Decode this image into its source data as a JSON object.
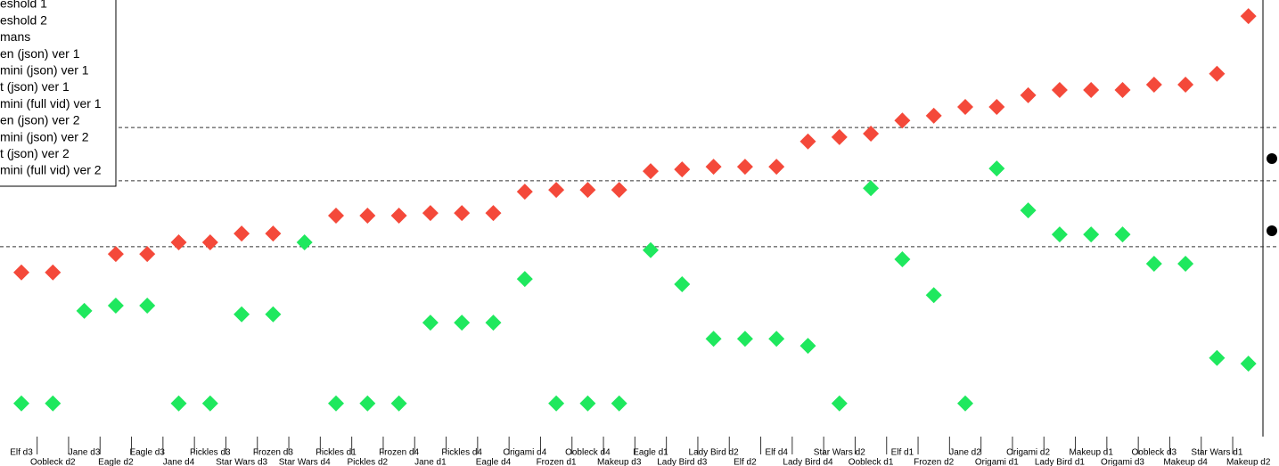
{
  "chart_data": {
    "type": "scatter",
    "categories": [
      "Elf d3",
      "Oobleck d2",
      "Jane d3",
      "Eagle d2",
      "Eagle d3",
      "Jane d4",
      "Pickles d3",
      "Star Wars d3",
      "Frozen d3",
      "Star Wars d4",
      "Pickles d1",
      "Pickles d2",
      "Frozen d4",
      "Jane d1",
      "Pickles d4",
      "Eagle d4",
      "Origami d4",
      "Frozen d1",
      "Oobleck d4",
      "Makeup d3",
      "Eagle d1",
      "Lady Bird d3",
      "Lady Bird d2",
      "Elf d2",
      "Elf d4",
      "Lady Bird d4",
      "Star Wars d2",
      "Oobleck d1",
      "Elf d1",
      "Frozen d2",
      "Jane d2",
      "Origami d1",
      "Origami d2",
      "Lady Bird d1",
      "Makeup d1",
      "Origami d3",
      "Oobleck d3",
      "Makeup d4",
      "Star Wars d1",
      "Makeup d2"
    ],
    "series": [
      {
        "color": "#f4493a",
        "values": [
          37.6,
          37.6,
          null,
          41.8,
          41.8,
          44.5,
          44.5,
          46.5,
          46.5,
          null,
          50.6,
          50.6,
          50.6,
          51.2,
          51.2,
          51.2,
          56.1,
          56.5,
          56.5,
          56.5,
          60.8,
          61.2,
          61.8,
          61.8,
          61.8,
          67.6,
          68.6,
          69.4,
          72.4,
          73.5,
          75.5,
          75.5,
          78.2,
          79.4,
          79.4,
          79.4,
          80.6,
          80.6,
          83.1,
          96.3
        ]
      },
      {
        "color": "#1fe85e",
        "values": [
          7.6,
          7.6,
          28.8,
          30.0,
          30.0,
          7.6,
          7.6,
          28.0,
          28.0,
          44.5,
          7.6,
          7.6,
          7.6,
          26.1,
          26.1,
          26.1,
          36.1,
          7.6,
          7.6,
          7.6,
          42.7,
          34.9,
          22.4,
          22.4,
          22.4,
          20.8,
          7.6,
          56.9,
          40.6,
          32.4,
          7.6,
          61.4,
          51.8,
          46.3,
          46.3,
          46.3,
          39.6,
          39.6,
          18.0,
          16.7
        ]
      }
    ],
    "hlines": [
      70.8,
      58.6,
      43.5
    ],
    "ylim": [
      0,
      100
    ],
    "legend": [
      "eshold 1",
      "eshold 2",
      "mans",
      "en (json) ver 1",
      "mini (json) ver 1",
      "t (json) ver 1",
      "mini (full vid) ver 1",
      "en (json) ver 2",
      "mini (json) ver 2",
      "t (json) ver 2",
      "mini (full vid) ver 2"
    ]
  }
}
